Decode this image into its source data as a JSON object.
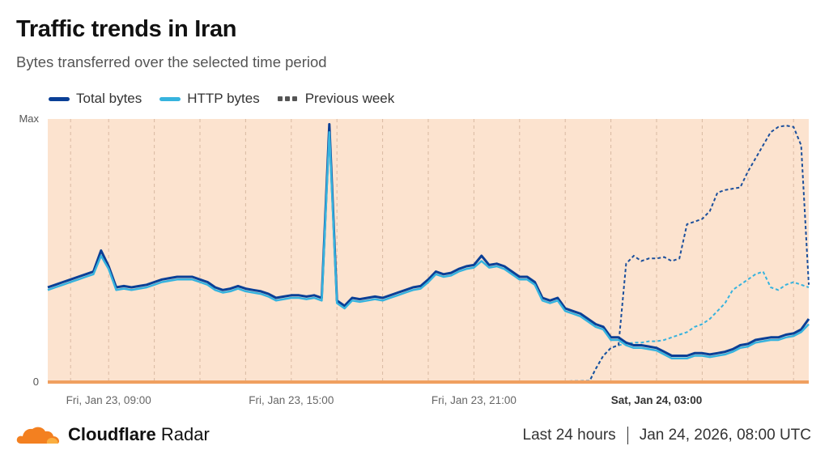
{
  "header": {
    "title": "Traffic trends in Iran",
    "subtitle": "Bytes transferred over the selected time period"
  },
  "legend": {
    "total": "Total bytes",
    "http": "HTTP bytes",
    "previous": "Previous week"
  },
  "footer": {
    "brand_bold": "Cloudflare",
    "brand_rest": " Radar",
    "range": "Last 24 hours",
    "timestamp": "Jan 24, 2026, 08:00 UTC"
  },
  "colors": {
    "total": "#0a3f96",
    "http": "#36b3de",
    "previous_total": "#1b4f9c",
    "previous_http": "#36b3de",
    "background_band": "#fce3cf",
    "baseline": "#f0a060",
    "logo": "#f38020"
  },
  "chart_data": {
    "type": "line",
    "ylabel_max": "Max",
    "ylabel_min": "0",
    "ylim": [
      0,
      100
    ],
    "x_unit": "hours since Jan 23, 06:00 UTC (display window ~ Jan 23 07:00 to Jan 24 08:00)",
    "xlim": [
      1.0,
      26.0
    ],
    "x_ticks": [
      {
        "x": 3.0,
        "label": "Fri, Jan 23, 09:00",
        "bold": false
      },
      {
        "x": 9.0,
        "label": "Fri, Jan 23, 15:00",
        "bold": false
      },
      {
        "x": 15.0,
        "label": "Fri, Jan 23, 21:00",
        "bold": false
      },
      {
        "x": 21.0,
        "label": "Sat, Jan 24, 03:00",
        "bold": true
      }
    ],
    "minor_grid_x": [
      1.75,
      3.0,
      4.5,
      6.0,
      7.5,
      9.0,
      10.5,
      12.0,
      13.5,
      15.0,
      16.5,
      18.0,
      19.5,
      21.0,
      22.5,
      24.0,
      25.5
    ],
    "series": [
      {
        "name": "Total bytes",
        "style": "solid",
        "points": [
          [
            1.0,
            36
          ],
          [
            1.25,
            37
          ],
          [
            1.5,
            38
          ],
          [
            1.75,
            39
          ],
          [
            2.0,
            40
          ],
          [
            2.25,
            41
          ],
          [
            2.5,
            42
          ],
          [
            2.75,
            50
          ],
          [
            3.0,
            44
          ],
          [
            3.25,
            36
          ],
          [
            3.5,
            36.5
          ],
          [
            3.75,
            36
          ],
          [
            4.0,
            36.5
          ],
          [
            4.25,
            37
          ],
          [
            4.5,
            38
          ],
          [
            4.75,
            39
          ],
          [
            5.0,
            39.5
          ],
          [
            5.25,
            40
          ],
          [
            5.5,
            40
          ],
          [
            5.75,
            40
          ],
          [
            6.0,
            39
          ],
          [
            6.25,
            38
          ],
          [
            6.5,
            36
          ],
          [
            6.75,
            35
          ],
          [
            7.0,
            35.5
          ],
          [
            7.25,
            36.5
          ],
          [
            7.5,
            35.5
          ],
          [
            7.75,
            35
          ],
          [
            8.0,
            34.5
          ],
          [
            8.25,
            33.5
          ],
          [
            8.5,
            32
          ],
          [
            8.75,
            32.5
          ],
          [
            9.0,
            33
          ],
          [
            9.25,
            33
          ],
          [
            9.5,
            32.5
          ],
          [
            9.75,
            33
          ],
          [
            10.0,
            32
          ],
          [
            10.25,
            98
          ],
          [
            10.5,
            31
          ],
          [
            10.75,
            29
          ],
          [
            11.0,
            32
          ],
          [
            11.25,
            31.5
          ],
          [
            11.5,
            32
          ],
          [
            11.75,
            32.5
          ],
          [
            12.0,
            32
          ],
          [
            12.25,
            33
          ],
          [
            12.5,
            34
          ],
          [
            12.75,
            35
          ],
          [
            13.0,
            36
          ],
          [
            13.25,
            36.5
          ],
          [
            13.5,
            39
          ],
          [
            13.75,
            42
          ],
          [
            14.0,
            41
          ],
          [
            14.25,
            41.5
          ],
          [
            14.5,
            43
          ],
          [
            14.75,
            44
          ],
          [
            15.0,
            44.5
          ],
          [
            15.25,
            48
          ],
          [
            15.5,
            44.5
          ],
          [
            15.75,
            45
          ],
          [
            16.0,
            44
          ],
          [
            16.25,
            42
          ],
          [
            16.5,
            40
          ],
          [
            16.75,
            40
          ],
          [
            17.0,
            38
          ],
          [
            17.25,
            32
          ],
          [
            17.5,
            31
          ],
          [
            17.75,
            32
          ],
          [
            18.0,
            28
          ],
          [
            18.25,
            27
          ],
          [
            18.5,
            26
          ],
          [
            18.75,
            24
          ],
          [
            19.0,
            22
          ],
          [
            19.25,
            21
          ],
          [
            19.5,
            17
          ],
          [
            19.75,
            17
          ],
          [
            20.0,
            15
          ],
          [
            20.25,
            14
          ],
          [
            20.5,
            14
          ],
          [
            20.75,
            13.5
          ],
          [
            21.0,
            13
          ],
          [
            21.25,
            11.5
          ],
          [
            21.5,
            10
          ],
          [
            21.75,
            10
          ],
          [
            22.0,
            10
          ],
          [
            22.25,
            11
          ],
          [
            22.5,
            11
          ],
          [
            22.75,
            10.5
          ],
          [
            23.0,
            11
          ],
          [
            23.25,
            11.5
          ],
          [
            23.5,
            12.5
          ],
          [
            23.75,
            14
          ],
          [
            24.0,
            14.5
          ],
          [
            24.25,
            16
          ],
          [
            24.5,
            16.5
          ],
          [
            24.75,
            17
          ],
          [
            25.0,
            17
          ],
          [
            25.25,
            18
          ],
          [
            25.5,
            18.5
          ],
          [
            25.75,
            20
          ],
          [
            26.0,
            24
          ]
        ]
      },
      {
        "name": "HTTP bytes",
        "style": "solid",
        "points": [
          [
            1.0,
            35
          ],
          [
            1.25,
            36
          ],
          [
            1.5,
            37
          ],
          [
            1.75,
            38
          ],
          [
            2.0,
            39
          ],
          [
            2.25,
            40
          ],
          [
            2.5,
            41
          ],
          [
            2.75,
            48
          ],
          [
            3.0,
            43
          ],
          [
            3.25,
            35
          ],
          [
            3.5,
            35.5
          ],
          [
            3.75,
            35
          ],
          [
            4.0,
            35.5
          ],
          [
            4.25,
            36
          ],
          [
            4.5,
            37
          ],
          [
            4.75,
            38
          ],
          [
            5.0,
            38.5
          ],
          [
            5.25,
            39
          ],
          [
            5.5,
            39
          ],
          [
            5.75,
            39
          ],
          [
            6.0,
            38
          ],
          [
            6.25,
            37
          ],
          [
            6.5,
            35
          ],
          [
            6.75,
            34
          ],
          [
            7.0,
            34.5
          ],
          [
            7.25,
            35.5
          ],
          [
            7.5,
            34.5
          ],
          [
            7.75,
            34
          ],
          [
            8.0,
            33.5
          ],
          [
            8.25,
            32.5
          ],
          [
            8.5,
            31
          ],
          [
            8.75,
            31.5
          ],
          [
            9.0,
            32
          ],
          [
            9.25,
            32
          ],
          [
            9.5,
            31.5
          ],
          [
            9.75,
            32
          ],
          [
            10.0,
            31
          ],
          [
            10.25,
            95
          ],
          [
            10.5,
            30
          ],
          [
            10.75,
            28
          ],
          [
            11.0,
            31
          ],
          [
            11.25,
            30.5
          ],
          [
            11.5,
            31
          ],
          [
            11.75,
            31.5
          ],
          [
            12.0,
            31
          ],
          [
            12.25,
            32
          ],
          [
            12.5,
            33
          ],
          [
            12.75,
            34
          ],
          [
            13.0,
            35
          ],
          [
            13.25,
            35.5
          ],
          [
            13.5,
            38
          ],
          [
            13.75,
            41
          ],
          [
            14.0,
            40
          ],
          [
            14.25,
            40.5
          ],
          [
            14.5,
            42
          ],
          [
            14.75,
            43
          ],
          [
            15.0,
            43.5
          ],
          [
            15.25,
            46
          ],
          [
            15.5,
            43.5
          ],
          [
            15.75,
            44
          ],
          [
            16.0,
            43
          ],
          [
            16.25,
            41
          ],
          [
            16.5,
            39
          ],
          [
            16.75,
            39
          ],
          [
            17.0,
            37
          ],
          [
            17.25,
            31
          ],
          [
            17.5,
            30
          ],
          [
            17.75,
            31
          ],
          [
            18.0,
            27
          ],
          [
            18.25,
            26
          ],
          [
            18.5,
            25
          ],
          [
            18.75,
            23
          ],
          [
            19.0,
            21
          ],
          [
            19.25,
            20
          ],
          [
            19.5,
            16
          ],
          [
            19.75,
            16
          ],
          [
            20.0,
            14
          ],
          [
            20.25,
            13
          ],
          [
            20.5,
            13
          ],
          [
            20.75,
            12.5
          ],
          [
            21.0,
            12
          ],
          [
            21.25,
            10.5
          ],
          [
            21.5,
            9
          ],
          [
            21.75,
            9
          ],
          [
            22.0,
            9
          ],
          [
            22.25,
            10
          ],
          [
            22.5,
            10
          ],
          [
            22.75,
            9.5
          ],
          [
            23.0,
            10
          ],
          [
            23.25,
            10.5
          ],
          [
            23.5,
            11.5
          ],
          [
            23.75,
            13
          ],
          [
            24.0,
            13.5
          ],
          [
            24.25,
            15
          ],
          [
            24.5,
            15.5
          ],
          [
            24.75,
            16
          ],
          [
            25.0,
            16
          ],
          [
            25.25,
            17
          ],
          [
            25.5,
            17.5
          ],
          [
            25.75,
            19
          ],
          [
            26.0,
            22
          ]
        ]
      },
      {
        "name": "Previous week",
        "style": "dotted",
        "points": [
          [
            1.0,
            0.2
          ],
          [
            2.0,
            0.3
          ],
          [
            3.0,
            0.2
          ],
          [
            4.0,
            0.2
          ],
          [
            5.0,
            0.3
          ],
          [
            6.0,
            0.3
          ],
          [
            7.0,
            0.3
          ],
          [
            8.0,
            0.2
          ],
          [
            9.0,
            0.3
          ],
          [
            10.0,
            0.3
          ],
          [
            11.0,
            0.3
          ],
          [
            12.0,
            0.3
          ],
          [
            13.0,
            0.3
          ],
          [
            14.0,
            0.3
          ],
          [
            15.0,
            0.3
          ],
          [
            16.0,
            0.3
          ],
          [
            17.0,
            0.3
          ],
          [
            18.0,
            0.3
          ],
          [
            18.8,
            0.4
          ],
          [
            19.0,
            5
          ],
          [
            19.25,
            10
          ],
          [
            19.5,
            13
          ],
          [
            19.75,
            14
          ],
          [
            20.0,
            45
          ],
          [
            20.25,
            48
          ],
          [
            20.5,
            46
          ],
          [
            20.75,
            47
          ],
          [
            21.0,
            47
          ],
          [
            21.25,
            47.5
          ],
          [
            21.5,
            46
          ],
          [
            21.75,
            47
          ],
          [
            22.0,
            60
          ],
          [
            22.25,
            61
          ],
          [
            22.5,
            62
          ],
          [
            22.75,
            65
          ],
          [
            23.0,
            72
          ],
          [
            23.25,
            73
          ],
          [
            23.5,
            73.5
          ],
          [
            23.75,
            74
          ],
          [
            24.0,
            80
          ],
          [
            24.25,
            85
          ],
          [
            24.5,
            90
          ],
          [
            24.75,
            95
          ],
          [
            25.0,
            97
          ],
          [
            25.25,
            97.5
          ],
          [
            25.5,
            97
          ],
          [
            25.75,
            90
          ],
          [
            26.0,
            37
          ]
        ]
      },
      {
        "name": "",
        "style": "dotted",
        "points": [
          [
            1.0,
            0.2
          ],
          [
            2.0,
            0.3
          ],
          [
            3.0,
            0.2
          ],
          [
            4.0,
            0.2
          ],
          [
            5.0,
            0.3
          ],
          [
            6.0,
            0.3
          ],
          [
            7.0,
            0.3
          ],
          [
            8.0,
            0.2
          ],
          [
            9.0,
            0.3
          ],
          [
            10.0,
            0.3
          ],
          [
            11.0,
            0.3
          ],
          [
            12.0,
            0.3
          ],
          [
            13.0,
            0.3
          ],
          [
            14.0,
            0.3
          ],
          [
            15.0,
            0.3
          ],
          [
            16.0,
            0.3
          ],
          [
            17.0,
            0.3
          ],
          [
            18.0,
            0.3
          ],
          [
            18.8,
            0.4
          ],
          [
            19.0,
            5
          ],
          [
            19.25,
            10
          ],
          [
            19.5,
            13
          ],
          [
            19.75,
            14
          ],
          [
            20.0,
            14.5
          ],
          [
            20.25,
            15
          ],
          [
            20.5,
            15
          ],
          [
            20.75,
            15.5
          ],
          [
            21.0,
            15.5
          ],
          [
            21.25,
            16
          ],
          [
            21.5,
            17
          ],
          [
            21.75,
            18
          ],
          [
            22.0,
            19
          ],
          [
            22.25,
            21
          ],
          [
            22.5,
            22
          ],
          [
            22.75,
            24
          ],
          [
            23.0,
            27
          ],
          [
            23.25,
            30
          ],
          [
            23.5,
            35
          ],
          [
            23.75,
            37
          ],
          [
            24.0,
            39
          ],
          [
            24.25,
            41
          ],
          [
            24.5,
            42
          ],
          [
            24.75,
            36
          ],
          [
            25.0,
            35
          ],
          [
            25.25,
            37
          ],
          [
            25.5,
            38
          ],
          [
            25.75,
            37
          ],
          [
            26.0,
            36
          ]
        ]
      }
    ]
  }
}
